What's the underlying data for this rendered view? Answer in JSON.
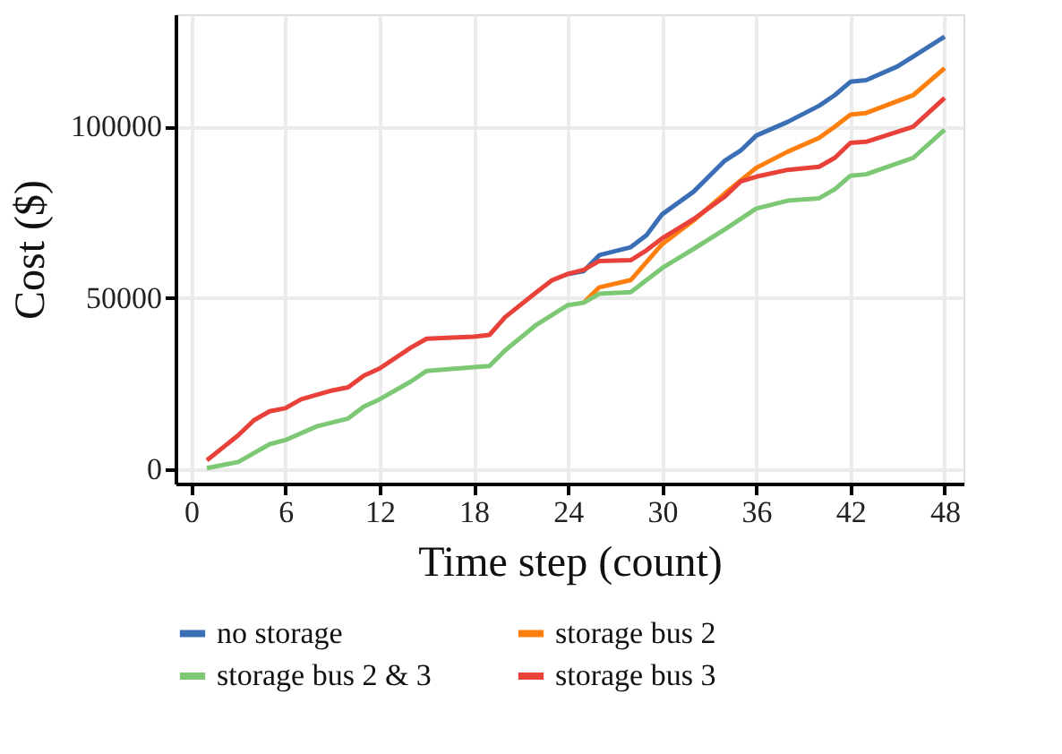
{
  "chart_data": {
    "type": "line",
    "xlabel": "Time step (count)",
    "ylabel": "Cost ($)",
    "xlim": [
      -1,
      49.2
    ],
    "xticks": [
      0,
      6,
      12,
      18,
      24,
      30,
      36,
      42,
      48
    ],
    "ylim": [
      -4200,
      132800
    ],
    "yticks": [
      0,
      50000,
      100000
    ],
    "grid": true,
    "legend": "bottom",
    "line_style": "solid",
    "marker": "none",
    "series": [
      {
        "name": "no storage",
        "color": "#3a6fb5",
        "x": [
          24,
          25,
          26,
          28,
          29,
          30,
          32,
          34,
          35,
          36,
          38,
          40,
          41,
          42,
          43,
          45,
          46,
          48
        ],
        "values": [
          57000,
          57800,
          62500,
          64800,
          68300,
          74400,
          81000,
          90100,
          93000,
          97400,
          101400,
          106100,
          109200,
          113100,
          113600,
          117600,
          120500,
          126300
        ]
      },
      {
        "name": "storage bus 2",
        "color": "#ff7f0e",
        "x": [
          25,
          26,
          28,
          30,
          32,
          34,
          36,
          38,
          40,
          41,
          42,
          43,
          46,
          48
        ],
        "values": [
          48600,
          53100,
          55200,
          65700,
          72600,
          80500,
          88000,
          92700,
          96700,
          100000,
          103500,
          104000,
          109200,
          117100
        ]
      },
      {
        "name": "storage bus 2 & 3",
        "color": "#7dc874",
        "x": [
          1,
          3,
          5,
          6,
          8,
          10,
          11,
          12,
          14,
          15,
          18,
          19,
          20,
          22,
          24,
          25,
          26,
          28,
          30,
          32,
          34,
          36,
          38,
          40,
          41,
          42,
          43,
          46,
          48
        ],
        "values": [
          300,
          2100,
          7300,
          8500,
          12500,
          14800,
          18300,
          20400,
          25600,
          28700,
          29800,
          30100,
          34700,
          42200,
          47900,
          48600,
          51200,
          51700,
          58700,
          64300,
          70000,
          76100,
          78400,
          79100,
          81700,
          85700,
          86100,
          90900,
          99100
        ]
      },
      {
        "name": "storage bus 3",
        "color": "#e8413a",
        "x": [
          1,
          3,
          4,
          5,
          6,
          7,
          9,
          10,
          11,
          12,
          14,
          15,
          17,
          18,
          19,
          20,
          22,
          23,
          24,
          25,
          26,
          28,
          29,
          30,
          32,
          34,
          35,
          36,
          38,
          40,
          41,
          42,
          43,
          46,
          48
        ],
        "values": [
          2600,
          9900,
          14300,
          16900,
          17800,
          20400,
          23000,
          23900,
          27300,
          29400,
          35500,
          38100,
          38500,
          38700,
          39200,
          44400,
          51700,
          55200,
          57000,
          58200,
          60800,
          61000,
          63900,
          67400,
          73000,
          79600,
          84000,
          85400,
          87400,
          88300,
          90900,
          95300,
          95600,
          100000,
          108400
        ]
      }
    ]
  }
}
